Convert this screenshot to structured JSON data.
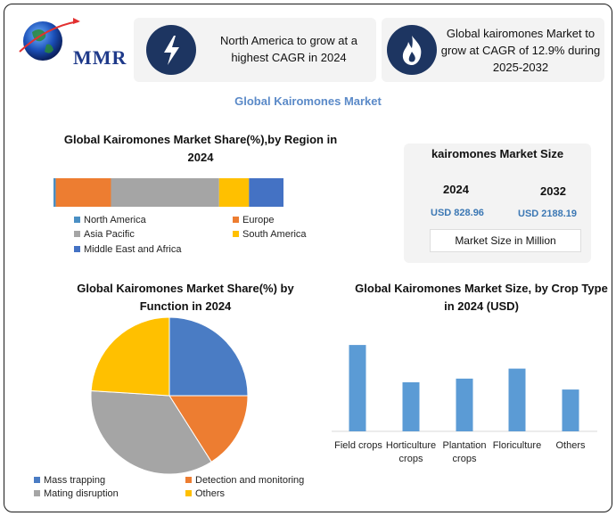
{
  "brand": {
    "name": "MMR"
  },
  "highlights": [
    {
      "icon": "lightning-icon",
      "text": "North America to grow at a highest CAGR in 2024"
    },
    {
      "icon": "flame-icon",
      "text": "Global kairomones Market to grow at CAGR of 12.9% during 2025-2032"
    }
  ],
  "main_title": "Global Kairomones Market",
  "market_size": {
    "title": "kairomones Market Size",
    "year1": "2024",
    "value1": "USD 828.96",
    "year2": "2032",
    "value2": "USD 2188.19",
    "unit_note": "Market Size in Million"
  },
  "colors": {
    "blue_light": "#4a8fc4",
    "orange": "#ed7d31",
    "gray": "#a5a5a5",
    "yellow": "#ffc000",
    "blue": "#4472c4",
    "pie_blue": "#4a7cc4",
    "bar": "#5b9bd5"
  },
  "chart_data": [
    {
      "type": "bar",
      "orientation": "horizontal-stacked",
      "title": "Global Kairomones Market Share(%),by Region in 2024",
      "categories": [
        "North America",
        "Europe",
        "Asia Pacific",
        "South America",
        "Middle East and Africa"
      ],
      "values": [
        1,
        24,
        47,
        13,
        15
      ],
      "legend_labels": [
        "North America",
        "Europe",
        "Asia Pacific",
        "South America",
        "Middle East and Africa"
      ]
    },
    {
      "type": "pie",
      "title": "Global Kairomones Market Share(%) by Function in 2024",
      "categories": [
        "Mass trapping",
        "Detection and monitoring",
        "Mating disruption",
        "Others"
      ],
      "values": [
        25,
        16,
        35,
        24
      ]
    },
    {
      "type": "bar",
      "title": "Global Kairomones Market Size, by Crop Type in 2024  (USD)",
      "categories": [
        "Field crops",
        "Horticulture crops",
        "Plantation crops",
        "Floriculture",
        "Others"
      ],
      "values": [
        95,
        54,
        58,
        69,
        46
      ],
      "ylim": [
        0,
        100
      ]
    }
  ]
}
